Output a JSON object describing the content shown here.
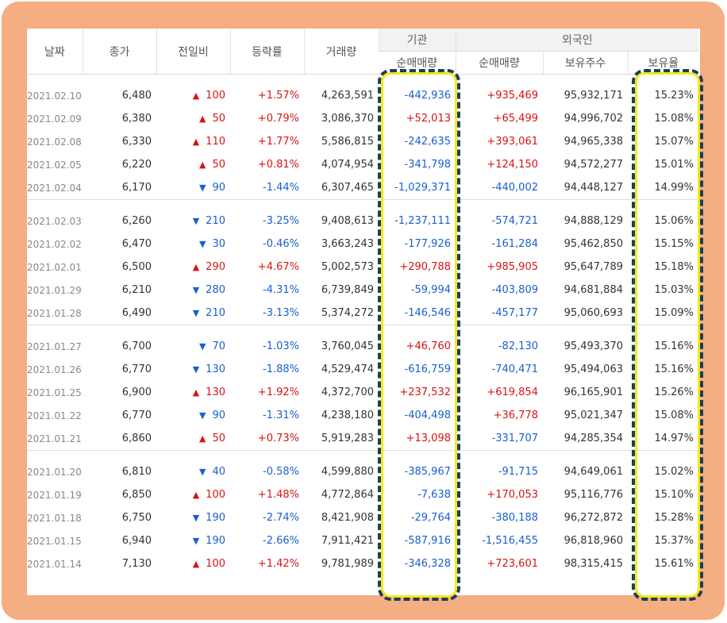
{
  "colors": {
    "frame": "#f4ae82",
    "up": "#d91414",
    "down": "#1a5fd0",
    "highlight_dash": "#1e3c5a",
    "highlight_glow": "#f2ea1c"
  },
  "header": {
    "date": "날짜",
    "close": "종가",
    "diff": "전일비",
    "rate": "등락률",
    "volume": "거래량",
    "institution": "기관",
    "foreign": "외국인",
    "inst_net": "순매매량",
    "foreign_net": "순매매량",
    "foreign_hold": "보유주수",
    "foreign_ratio": "보유율"
  },
  "rows": [
    {
      "date": "2021.02.10",
      "close": "6,480",
      "dir": "up",
      "arrow": "▲",
      "diff": "100",
      "rate": "+1.57%",
      "volume": "4,263,591",
      "inst": "-442,936",
      "inst_dir": "down",
      "fnet": "+935,469",
      "fnet_dir": "up",
      "fhold": "95,932,171",
      "fratio": "15.23%"
    },
    {
      "date": "2021.02.09",
      "close": "6,380",
      "dir": "up",
      "arrow": "▲",
      "diff": "50",
      "rate": "+0.79%",
      "volume": "3,086,370",
      "inst": "+52,013",
      "inst_dir": "up",
      "fnet": "+65,499",
      "fnet_dir": "up",
      "fhold": "94,996,702",
      "fratio": "15.08%"
    },
    {
      "date": "2021.02.08",
      "close": "6,330",
      "dir": "up",
      "arrow": "▲",
      "diff": "110",
      "rate": "+1.77%",
      "volume": "5,586,815",
      "inst": "-242,635",
      "inst_dir": "down",
      "fnet": "+393,061",
      "fnet_dir": "up",
      "fhold": "94,965,338",
      "fratio": "15.07%"
    },
    {
      "date": "2021.02.05",
      "close": "6,220",
      "dir": "up",
      "arrow": "▲",
      "diff": "50",
      "rate": "+0.81%",
      "volume": "4,074,954",
      "inst": "-341,798",
      "inst_dir": "down",
      "fnet": "+124,150",
      "fnet_dir": "up",
      "fhold": "94,572,277",
      "fratio": "15.01%"
    },
    {
      "date": "2021.02.04",
      "close": "6,170",
      "dir": "down",
      "arrow": "▼",
      "diff": "90",
      "rate": "-1.44%",
      "volume": "6,307,465",
      "inst": "-1,029,371",
      "inst_dir": "down",
      "fnet": "-440,002",
      "fnet_dir": "down",
      "fhold": "94,448,127",
      "fratio": "14.99%"
    },
    {
      "date": "2021.02.03",
      "close": "6,260",
      "dir": "down",
      "arrow": "▼",
      "diff": "210",
      "rate": "-3.25%",
      "volume": "9,408,613",
      "inst": "-1,237,111",
      "inst_dir": "down",
      "fnet": "-574,721",
      "fnet_dir": "down",
      "fhold": "94,888,129",
      "fratio": "15.06%"
    },
    {
      "date": "2021.02.02",
      "close": "6,470",
      "dir": "down",
      "arrow": "▼",
      "diff": "30",
      "rate": "-0.46%",
      "volume": "3,663,243",
      "inst": "-177,926",
      "inst_dir": "down",
      "fnet": "-161,284",
      "fnet_dir": "down",
      "fhold": "95,462,850",
      "fratio": "15.15%"
    },
    {
      "date": "2021.02.01",
      "close": "6,500",
      "dir": "up",
      "arrow": "▲",
      "diff": "290",
      "rate": "+4.67%",
      "volume": "5,002,573",
      "inst": "+290,788",
      "inst_dir": "up",
      "fnet": "+985,905",
      "fnet_dir": "up",
      "fhold": "95,647,789",
      "fratio": "15.18%"
    },
    {
      "date": "2021.01.29",
      "close": "6,210",
      "dir": "down",
      "arrow": "▼",
      "diff": "280",
      "rate": "-4.31%",
      "volume": "6,739,849",
      "inst": "-59,994",
      "inst_dir": "down",
      "fnet": "-403,809",
      "fnet_dir": "down",
      "fhold": "94,681,884",
      "fratio": "15.03%"
    },
    {
      "date": "2021.01.28",
      "close": "6,490",
      "dir": "down",
      "arrow": "▼",
      "diff": "210",
      "rate": "-3.13%",
      "volume": "5,374,272",
      "inst": "-146,546",
      "inst_dir": "down",
      "fnet": "-457,177",
      "fnet_dir": "down",
      "fhold": "95,060,693",
      "fratio": "15.09%"
    },
    {
      "date": "2021.01.27",
      "close": "6,700",
      "dir": "down",
      "arrow": "▼",
      "diff": "70",
      "rate": "-1.03%",
      "volume": "3,760,045",
      "inst": "+46,760",
      "inst_dir": "up",
      "fnet": "-82,130",
      "fnet_dir": "down",
      "fhold": "95,493,370",
      "fratio": "15.16%"
    },
    {
      "date": "2021.01.26",
      "close": "6,770",
      "dir": "down",
      "arrow": "▼",
      "diff": "130",
      "rate": "-1.88%",
      "volume": "4,529,474",
      "inst": "-616,759",
      "inst_dir": "down",
      "fnet": "-740,471",
      "fnet_dir": "down",
      "fhold": "95,494,063",
      "fratio": "15.16%"
    },
    {
      "date": "2021.01.25",
      "close": "6,900",
      "dir": "up",
      "arrow": "▲",
      "diff": "130",
      "rate": "+1.92%",
      "volume": "4,372,700",
      "inst": "+237,532",
      "inst_dir": "up",
      "fnet": "+619,854",
      "fnet_dir": "up",
      "fhold": "96,165,901",
      "fratio": "15.26%"
    },
    {
      "date": "2021.01.22",
      "close": "6,770",
      "dir": "down",
      "arrow": "▼",
      "diff": "90",
      "rate": "-1.31%",
      "volume": "4,238,180",
      "inst": "-404,498",
      "inst_dir": "down",
      "fnet": "+36,778",
      "fnet_dir": "up",
      "fhold": "95,021,347",
      "fratio": "15.08%"
    },
    {
      "date": "2021.01.21",
      "close": "6,860",
      "dir": "up",
      "arrow": "▲",
      "diff": "50",
      "rate": "+0.73%",
      "volume": "5,919,283",
      "inst": "+13,098",
      "inst_dir": "up",
      "fnet": "-331,707",
      "fnet_dir": "down",
      "fhold": "94,285,354",
      "fratio": "14.97%"
    },
    {
      "date": "2021.01.20",
      "close": "6,810",
      "dir": "down",
      "arrow": "▼",
      "diff": "40",
      "rate": "-0.58%",
      "volume": "4,599,880",
      "inst": "-385,967",
      "inst_dir": "down",
      "fnet": "-91,715",
      "fnet_dir": "down",
      "fhold": "94,649,061",
      "fratio": "15.02%"
    },
    {
      "date": "2021.01.19",
      "close": "6,850",
      "dir": "up",
      "arrow": "▲",
      "diff": "100",
      "rate": "+1.48%",
      "volume": "4,772,864",
      "inst": "-7,638",
      "inst_dir": "down",
      "fnet": "+170,053",
      "fnet_dir": "up",
      "fhold": "95,116,776",
      "fratio": "15.10%"
    },
    {
      "date": "2021.01.18",
      "close": "6,750",
      "dir": "down",
      "arrow": "▼",
      "diff": "190",
      "rate": "-2.74%",
      "volume": "8,421,908",
      "inst": "-29,764",
      "inst_dir": "down",
      "fnet": "-380,188",
      "fnet_dir": "down",
      "fhold": "96,272,872",
      "fratio": "15.28%"
    },
    {
      "date": "2021.01.15",
      "close": "6,940",
      "dir": "down",
      "arrow": "▼",
      "diff": "190",
      "rate": "-2.66%",
      "volume": "7,911,421",
      "inst": "-587,916",
      "inst_dir": "down",
      "fnet": "-1,516,455",
      "fnet_dir": "down",
      "fhold": "96,818,960",
      "fratio": "15.37%"
    },
    {
      "date": "2021.01.14",
      "close": "7,130",
      "dir": "up",
      "arrow": "▲",
      "diff": "100",
      "rate": "+1.42%",
      "volume": "9,781,989",
      "inst": "-346,328",
      "inst_dir": "down",
      "fnet": "+723,601",
      "fnet_dir": "up",
      "fhold": "98,315,415",
      "fratio": "15.61%"
    }
  ]
}
